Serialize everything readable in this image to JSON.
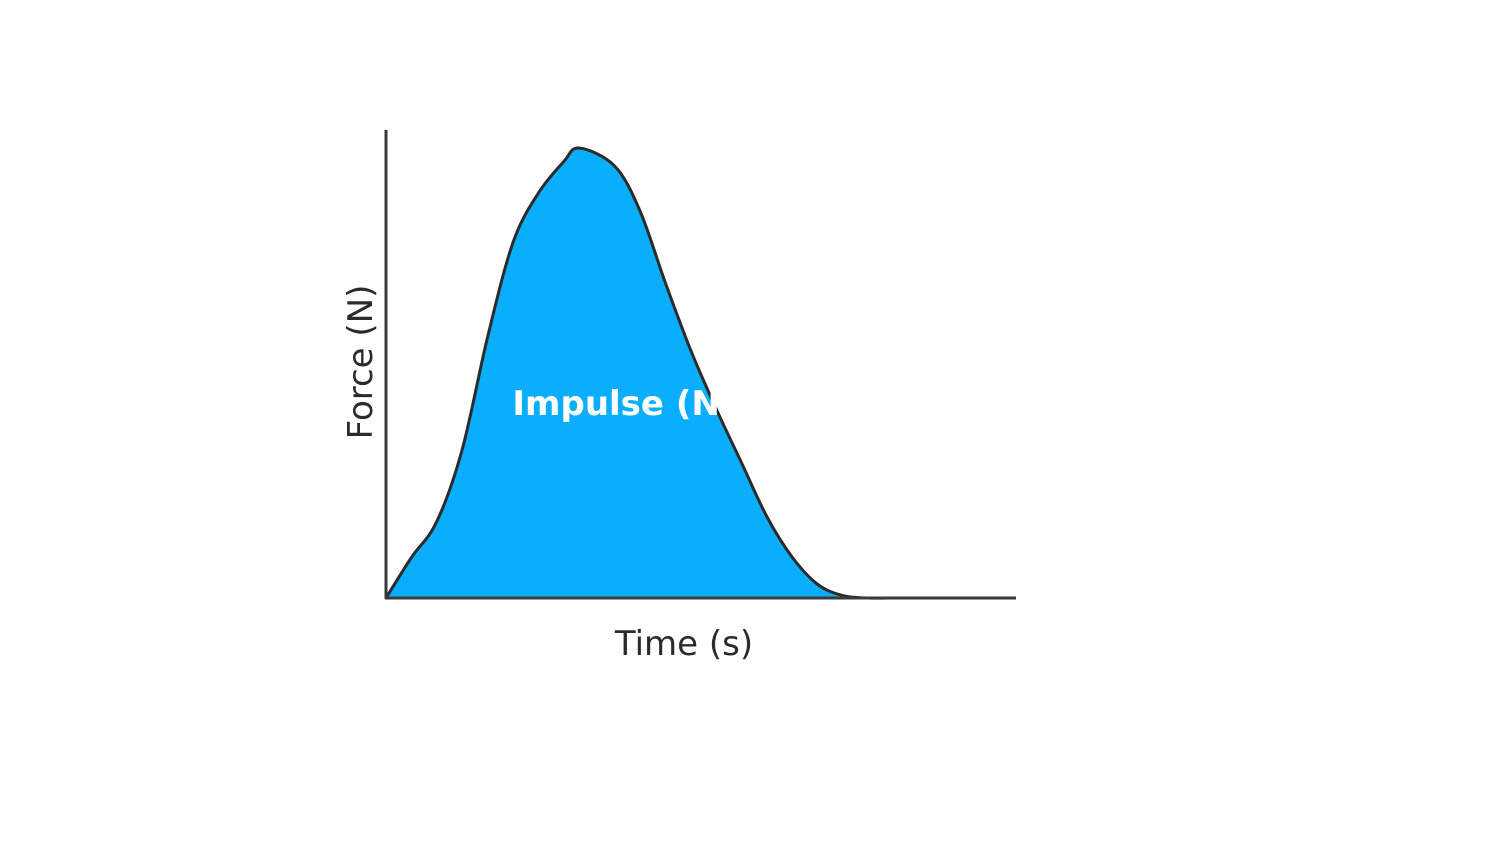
{
  "chart_data": {
    "type": "area",
    "title": "",
    "xlabel": "Time (s)",
    "ylabel": "Force (N)",
    "annotation": "Impulse (Ns)",
    "x_ticks": [],
    "y_ticks": [],
    "grid": false,
    "legend": "none",
    "fill_color": "#0aaefc",
    "curve_color": "#2b2b2b",
    "axis_color": "#3a3a3a",
    "series": [
      {
        "x": [
          0,
          0.05,
          0.1,
          0.15,
          0.2,
          0.25,
          0.3,
          0.35,
          0.38,
          0.45,
          0.5,
          0.55,
          0.6,
          0.65,
          0.7,
          0.75,
          0.8,
          0.85,
          0.9,
          0.95,
          1.0
        ],
        "y": [
          0,
          0.09,
          0.17,
          0.33,
          0.58,
          0.79,
          0.9,
          0.97,
          1.0,
          0.96,
          0.86,
          0.7,
          0.55,
          0.42,
          0.3,
          0.18,
          0.09,
          0.03,
          0.005,
          0,
          0
        ]
      }
    ],
    "xlim": [
      0,
      1.24
    ],
    "ylim": [
      0,
      1.04
    ]
  }
}
